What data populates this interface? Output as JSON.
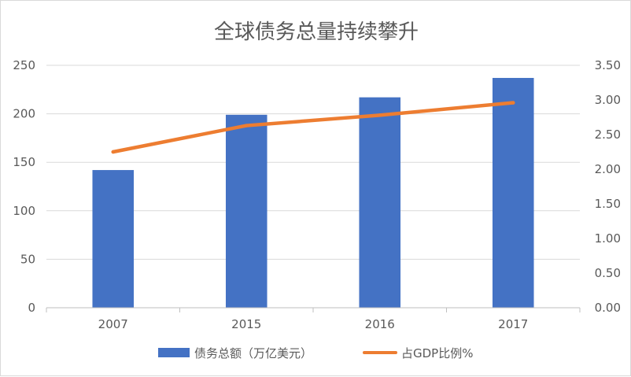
{
  "chart_data": {
    "type": "bar",
    "title": "全球债务总量持续攀升",
    "categories": [
      "2007",
      "2015",
      "2016",
      "2017"
    ],
    "series": [
      {
        "name": "债务总额（万亿美元）",
        "chart_type": "bar",
        "axis": "left",
        "color": "#4472C4",
        "values": [
          142,
          199,
          217,
          237
        ]
      },
      {
        "name": "占GDP比例%",
        "chart_type": "line",
        "axis": "right",
        "color": "#ED7D31",
        "values": [
          2.25,
          2.63,
          2.78,
          2.96
        ]
      }
    ],
    "y_left": {
      "min": 0,
      "max": 250,
      "ticks": [
        "0",
        "50",
        "100",
        "150",
        "200",
        "250"
      ]
    },
    "y_right": {
      "min": 0,
      "max": 3.5,
      "ticks": [
        "0.00",
        "0.50",
        "1.00",
        "1.50",
        "2.00",
        "2.50",
        "3.00",
        "3.50"
      ]
    },
    "grid": true,
    "legend": "bottom"
  }
}
